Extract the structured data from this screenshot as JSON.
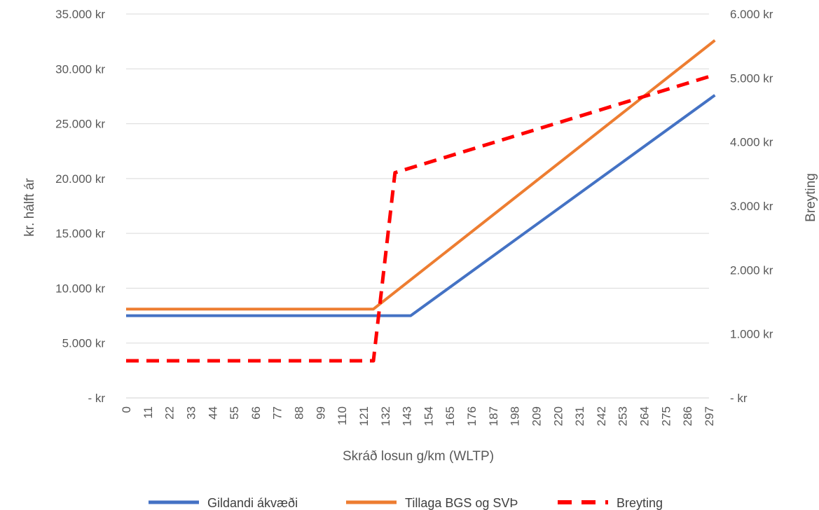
{
  "chart_data": {
    "type": "line",
    "title": "",
    "xlabel": "Skráð losun g/km (WLTP)",
    "ylabel": "kr. hálft ár",
    "y2label": "Breyting",
    "x": [
      0,
      11,
      22,
      33,
      44,
      55,
      66,
      77,
      88,
      99,
      110,
      121,
      132,
      143,
      154,
      165,
      176,
      187,
      198,
      209,
      220,
      231,
      242,
      253,
      264,
      275,
      286,
      297
    ],
    "x_tick_labels": [
      "0",
      "11",
      "22",
      "33",
      "44",
      "55",
      "66",
      "77",
      "88",
      "99",
      "110",
      "121",
      "132",
      "143",
      "154",
      "165",
      "176",
      "187",
      "198",
      "209",
      "220",
      "231",
      "242",
      "253",
      "264",
      "275",
      "286",
      "297"
    ],
    "ylim": [
      0,
      35000
    ],
    "y_ticks": [
      0,
      5000,
      10000,
      15000,
      20000,
      25000,
      30000,
      35000
    ],
    "y_tick_labels": [
      "-   kr",
      "5.000 kr",
      "10.000 kr",
      "15.000 kr",
      "20.000 kr",
      "25.000 kr",
      "30.000 kr",
      "35.000 kr"
    ],
    "y2lim": [
      0,
      6000
    ],
    "y2_ticks": [
      0,
      1000,
      2000,
      3000,
      4000,
      5000,
      6000
    ],
    "y2_tick_labels": [
      "-   kr",
      "1.000 kr",
      "2.000 kr",
      "3.000 kr",
      "4.000 kr",
      "5.000 kr",
      "6.000 kr"
    ],
    "grid": true,
    "legend_position": "bottom",
    "series": [
      {
        "name": "Gildandi ákvæði",
        "axis": "left",
        "color": "#4472C4",
        "style": "solid",
        "points": [
          [
            0,
            7500
          ],
          [
            145,
            7500
          ],
          [
            300,
            27600
          ]
        ]
      },
      {
        "name": "Tillaga BGS og SVÞ",
        "axis": "left",
        "color": "#ED7D31",
        "style": "solid",
        "points": [
          [
            0,
            8100
          ],
          [
            126,
            8100
          ],
          [
            300,
            32600
          ]
        ]
      },
      {
        "name": "Breyting",
        "axis": "right",
        "color": "#FF0000",
        "style": "dashed",
        "points": [
          [
            0,
            580
          ],
          [
            126,
            580
          ],
          [
            137,
            3520
          ],
          [
            300,
            5050
          ]
        ]
      }
    ]
  }
}
